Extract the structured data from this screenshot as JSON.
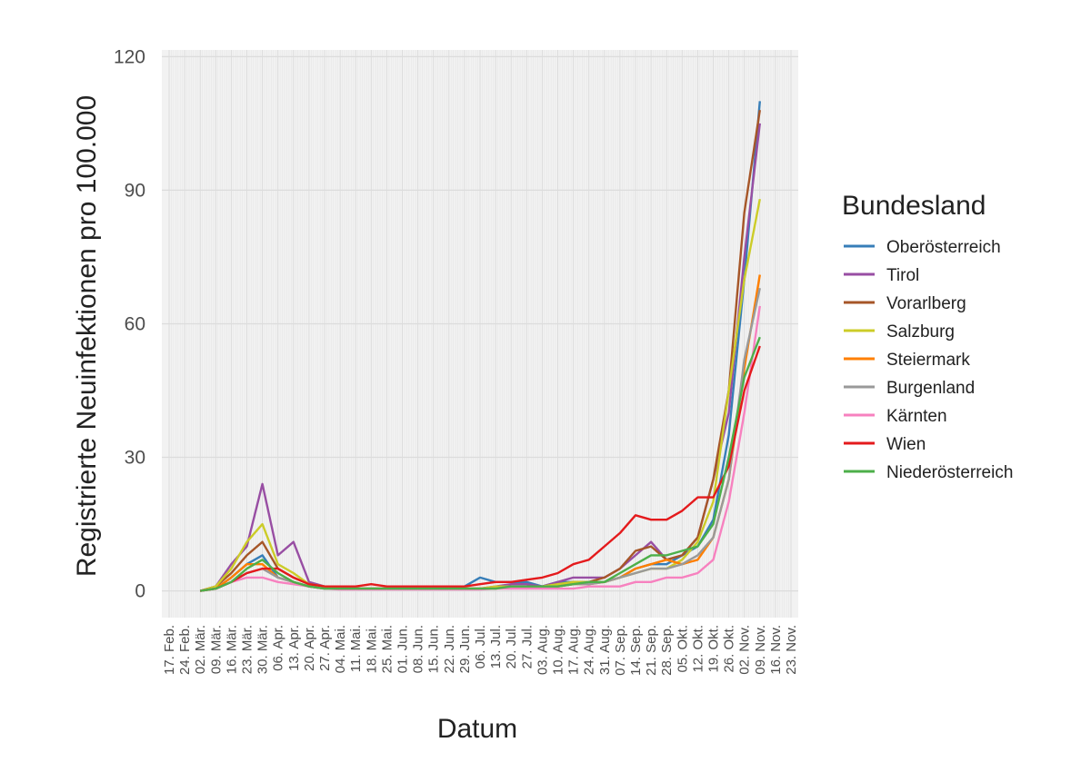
{
  "chart_data": {
    "type": "line",
    "x_label": "Datum",
    "y_label": "Registrierte Neuinfektionen pro 100.000",
    "legend_title": "Bundesland",
    "legend_position": "right",
    "grid": true,
    "ylim": [
      -6,
      121.5
    ],
    "yticks": [
      0,
      30,
      60,
      90,
      120
    ],
    "categories": [
      "17. Feb.",
      "24. Feb.",
      "02. Mär.",
      "09. Mär.",
      "16. Mär.",
      "23. Mär.",
      "30. Mär.",
      "06. Apr.",
      "13. Apr.",
      "20. Apr.",
      "27. Apr.",
      "04. Mai.",
      "11. Mai.",
      "18. Mai.",
      "25. Mai.",
      "01. Jun.",
      "08. Jun.",
      "15. Jun.",
      "22. Jun.",
      "29. Jun.",
      "06. Jul.",
      "13. Jul.",
      "20. Jul.",
      "27. Jul.",
      "03. Aug.",
      "10. Aug.",
      "17. Aug.",
      "24. Aug.",
      "31. Aug.",
      "07. Sep.",
      "14. Sep.",
      "21. Sep.",
      "28. Sep.",
      "05. Okt.",
      "12. Okt.",
      "19. Okt.",
      "26. Okt.",
      "02. Nov.",
      "09. Nov.",
      "16. Nov.",
      "23. Nov."
    ],
    "series": [
      {
        "name": "Oberösterreich",
        "color": "#377eb8",
        "values": [
          null,
          null,
          0,
          0.5,
          3,
          6,
          8,
          3,
          2,
          1,
          0.5,
          0.5,
          0.5,
          0.5,
          0.5,
          0.5,
          0.5,
          0.5,
          0.5,
          1,
          3,
          2,
          2,
          2,
          1,
          2,
          2,
          2,
          2,
          3,
          5,
          6,
          6,
          8,
          10,
          16,
          35,
          70,
          110,
          null,
          null
        ]
      },
      {
        "name": "Tirol",
        "color": "#984ea3",
        "values": [
          null,
          null,
          0,
          1,
          6,
          10,
          24,
          8,
          11,
          2,
          1,
          0.5,
          0.5,
          0.5,
          0.5,
          0.5,
          0.5,
          0.5,
          0.5,
          0.5,
          0.5,
          1,
          1.5,
          1.5,
          1,
          2,
          3,
          3,
          3,
          5,
          8,
          11,
          7,
          8,
          12,
          25,
          40,
          75,
          105,
          null,
          null
        ]
      },
      {
        "name": "Vorarlberg",
        "color": "#a65628",
        "values": [
          null,
          null,
          0,
          1,
          4,
          8,
          11,
          5,
          3,
          1.5,
          1,
          0.5,
          0.5,
          0.5,
          0.5,
          0.5,
          0.5,
          0.5,
          0.5,
          0.5,
          0.5,
          0.5,
          1,
          1,
          1,
          1.5,
          2,
          2,
          3,
          5,
          9,
          10,
          7,
          8,
          12,
          25,
          45,
          85,
          108,
          null,
          null
        ]
      },
      {
        "name": "Salzburg",
        "color": "#cccc28",
        "values": [
          null,
          null,
          0,
          1,
          5,
          11,
          15,
          6,
          4,
          1.5,
          1,
          0.5,
          0.5,
          0.5,
          0.5,
          0.5,
          0.5,
          0.5,
          0.5,
          0.5,
          0.5,
          1,
          1,
          1,
          1,
          1.5,
          2,
          2,
          2,
          3,
          4,
          5,
          5,
          7,
          11,
          20,
          45,
          70,
          88,
          null,
          null
        ]
      },
      {
        "name": "Steiermark",
        "color": "#ff7f00",
        "values": [
          null,
          null,
          0,
          0.5,
          3,
          6,
          6,
          3,
          2,
          1,
          0.5,
          0.5,
          0.5,
          0.5,
          0.5,
          0.5,
          0.5,
          0.5,
          0.5,
          0.5,
          0.5,
          0.5,
          1,
          1,
          1,
          1,
          1.5,
          1.5,
          2,
          3,
          5,
          6,
          7,
          6,
          7,
          12,
          25,
          50,
          71,
          null,
          null
        ]
      },
      {
        "name": "Burgenland",
        "color": "#999999",
        "values": [
          null,
          null,
          0,
          0.5,
          2,
          4,
          5,
          3,
          2,
          1,
          0.5,
          0.5,
          0.5,
          0.5,
          0.5,
          0.5,
          0.5,
          0.5,
          0.5,
          0.5,
          0.5,
          0.5,
          1,
          1,
          1,
          1,
          1.5,
          1.5,
          2,
          3,
          4,
          5,
          5,
          6,
          8,
          12,
          25,
          52,
          68,
          null,
          null
        ]
      },
      {
        "name": "Kärnten",
        "color": "#f781bf",
        "values": [
          null,
          null,
          0,
          0.5,
          2,
          3,
          3,
          2,
          1.5,
          1,
          0.5,
          0.3,
          0.3,
          0.3,
          0.3,
          0.3,
          0.3,
          0.3,
          0.3,
          0.3,
          0.3,
          0.5,
          0.5,
          0.5,
          0.5,
          0.5,
          0.5,
          1,
          1,
          1,
          2,
          2,
          3,
          3,
          4,
          7,
          20,
          40,
          64,
          null,
          null
        ]
      },
      {
        "name": "Wien",
        "color": "#e41a1c",
        "values": [
          null,
          null,
          0,
          0.5,
          2,
          4,
          5,
          5,
          3,
          1.5,
          1,
          1,
          1,
          1.5,
          1,
          1,
          1,
          1,
          1,
          1,
          1.5,
          2,
          2,
          2.5,
          3,
          4,
          6,
          7,
          10,
          13,
          17,
          16,
          16,
          18,
          21,
          21,
          28,
          45,
          55,
          null,
          null
        ]
      },
      {
        "name": "Niederösterreich",
        "color": "#4daf4a",
        "values": [
          null,
          null,
          0,
          0.5,
          2,
          5,
          7,
          4,
          2,
          1,
          0.5,
          0.5,
          0.5,
          0.5,
          0.5,
          0.5,
          0.5,
          0.5,
          0.5,
          0.5,
          0.5,
          0.5,
          1,
          1,
          1,
          1,
          1.5,
          2,
          2,
          4,
          6,
          8,
          8,
          9,
          10,
          15,
          30,
          48,
          57,
          null,
          null
        ]
      }
    ]
  }
}
